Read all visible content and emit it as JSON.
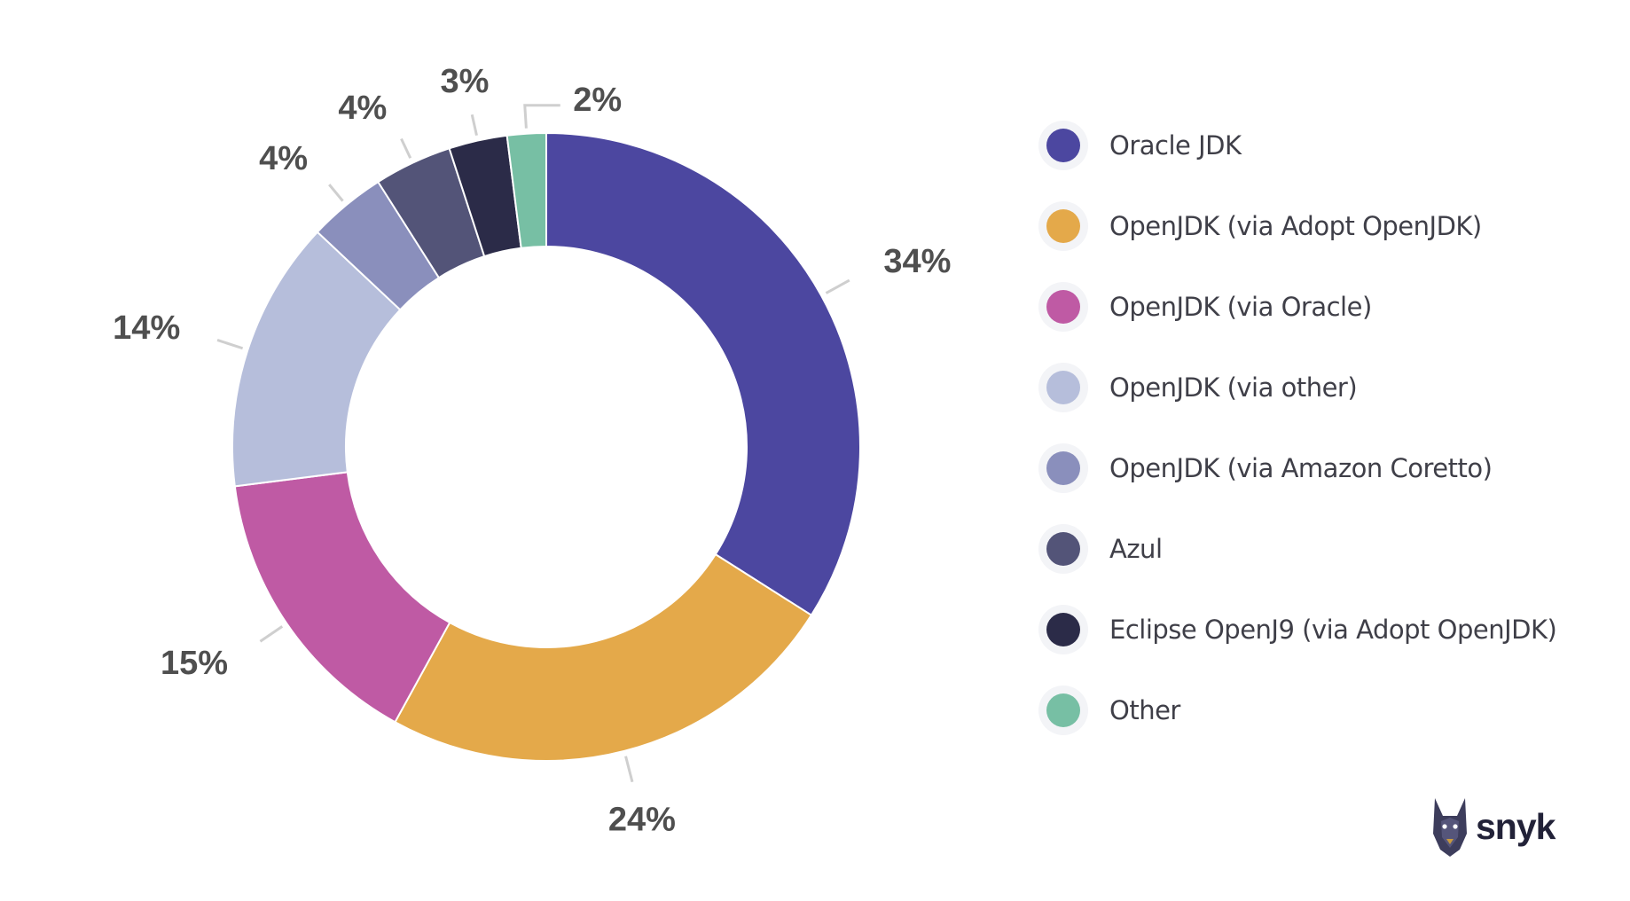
{
  "chart_data": {
    "type": "pie",
    "variant": "donut",
    "title": "",
    "categories": [
      "Oracle JDK",
      "OpenJDK (via Adopt OpenJDK)",
      "OpenJDK (via Oracle)",
      "OpenJDK (via other)",
      "OpenJDK (via Amazon Coretto)",
      "Azul",
      "Eclipse OpenJ9 (via Adopt OpenJDK)",
      "Other"
    ],
    "values": [
      34,
      24,
      15,
      14,
      4,
      4,
      3,
      2
    ],
    "data_labels": [
      "34%",
      "24%",
      "15%",
      "14%",
      "4%",
      "4%",
      "3%",
      "2%"
    ],
    "colors": [
      "#4c47a0",
      "#e4a94a",
      "#bf5aa4",
      "#b6bedb",
      "#8a8fbc",
      "#535478",
      "#2b2b48",
      "#77bfa4"
    ],
    "legend_position": "right"
  },
  "branding": {
    "logo_text": "snyk",
    "logo_icon": "doberman-icon"
  }
}
